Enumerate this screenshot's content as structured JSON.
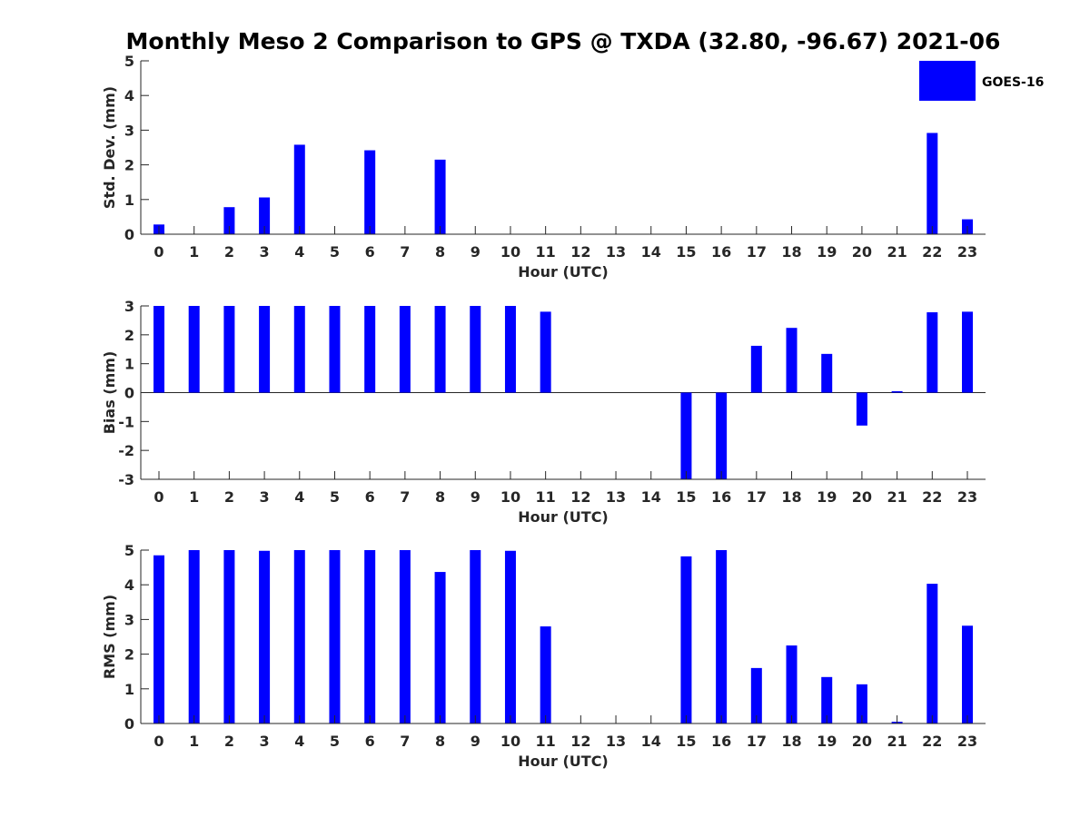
{
  "figure_title": "Monthly Meso 2 Comparison to GPS @ TXDA (32.80, -96.67) 2021-06",
  "legend": {
    "label": "GOES-16",
    "color": "#0000ff"
  },
  "colors": {
    "bar": "#0000ff",
    "axis": "#262626"
  },
  "chart_data": [
    {
      "type": "bar",
      "series": [
        {
          "name": "GOES-16",
          "values": [
            0.28,
            0,
            0.78,
            1.06,
            2.58,
            0,
            2.42,
            0,
            2.15,
            0,
            0,
            0,
            0,
            0,
            0,
            0,
            0,
            0,
            0,
            0,
            0,
            0,
            2.92,
            0.43
          ]
        }
      ],
      "categories": [
        "0",
        "1",
        "2",
        "3",
        "4",
        "5",
        "6",
        "7",
        "8",
        "9",
        "10",
        "11",
        "12",
        "13",
        "14",
        "15",
        "16",
        "17",
        "18",
        "19",
        "20",
        "21",
        "22",
        "23"
      ],
      "xlabel": "Hour (UTC)",
      "ylabel": "Std. Dev. (mm)",
      "ylim": [
        0,
        5
      ],
      "yticks": [
        "0",
        "1",
        "2",
        "3",
        "4",
        "5"
      ]
    },
    {
      "type": "bar",
      "series": [
        {
          "name": "GOES-16",
          "values": [
            3.0,
            3.0,
            3.0,
            3.0,
            3.0,
            3.0,
            3.0,
            3.0,
            3.0,
            3.0,
            3.0,
            2.8,
            0,
            0,
            0,
            -3.0,
            -3.0,
            1.62,
            2.24,
            1.34,
            -1.14,
            0.05,
            2.78,
            2.8
          ]
        }
      ],
      "categories": [
        "0",
        "1",
        "2",
        "3",
        "4",
        "5",
        "6",
        "7",
        "8",
        "9",
        "10",
        "11",
        "12",
        "13",
        "14",
        "15",
        "16",
        "17",
        "18",
        "19",
        "20",
        "21",
        "22",
        "23"
      ],
      "xlabel": "Hour (UTC)",
      "ylabel": "Bias (mm)",
      "ylim": [
        -3,
        3
      ],
      "yticks": [
        "-3",
        "-2",
        "-1",
        "0",
        "1",
        "2",
        "3"
      ]
    },
    {
      "type": "bar",
      "series": [
        {
          "name": "GOES-16",
          "values": [
            4.85,
            5.0,
            5.0,
            4.98,
            5.0,
            5.0,
            5.0,
            5.0,
            4.37,
            5.0,
            4.98,
            2.8,
            0,
            0,
            0,
            4.82,
            5.0,
            1.6,
            2.25,
            1.34,
            1.13,
            0.05,
            4.03,
            2.82
          ]
        }
      ],
      "categories": [
        "0",
        "1",
        "2",
        "3",
        "4",
        "5",
        "6",
        "7",
        "8",
        "9",
        "10",
        "11",
        "12",
        "13",
        "14",
        "15",
        "16",
        "17",
        "18",
        "19",
        "20",
        "21",
        "22",
        "23"
      ],
      "xlabel": "Hour (UTC)",
      "ylabel": "RMS (mm)",
      "ylim": [
        0,
        5
      ],
      "yticks": [
        "0",
        "1",
        "2",
        "3",
        "4",
        "5"
      ]
    }
  ]
}
